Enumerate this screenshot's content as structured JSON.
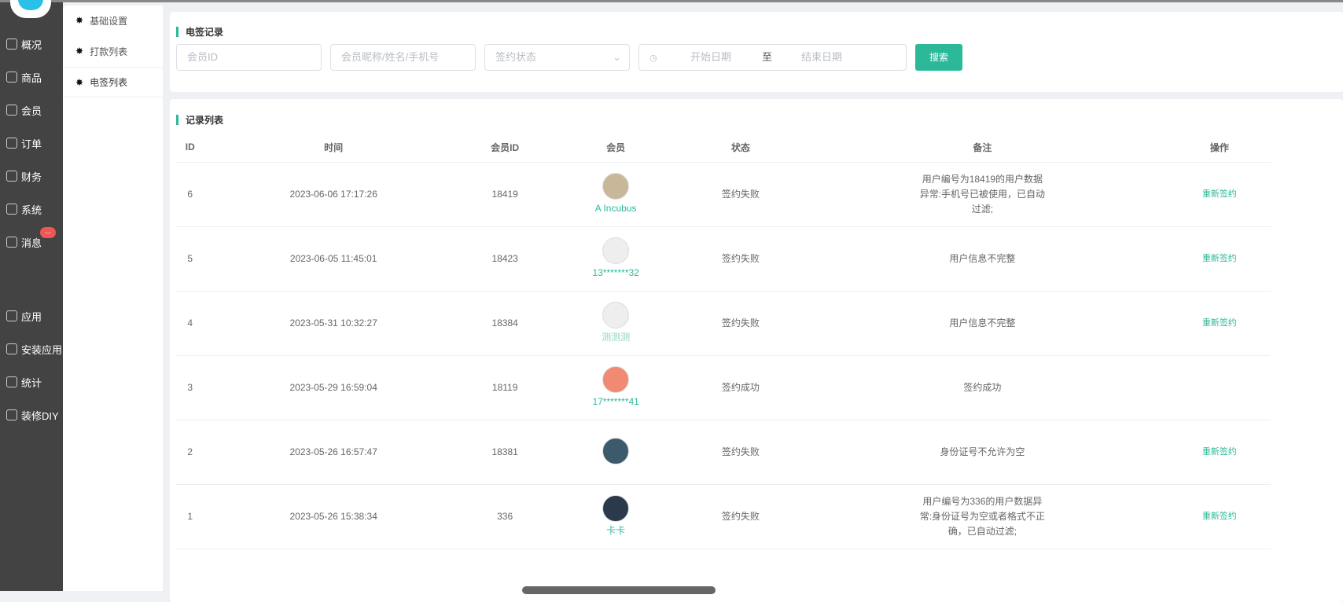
{
  "sidebar": {
    "items": [
      {
        "label": "概况",
        "icon": "chart-icon"
      },
      {
        "label": "商品",
        "icon": "box-icon"
      },
      {
        "label": "会员",
        "icon": "users-icon"
      },
      {
        "label": "订单",
        "icon": "cart-icon"
      },
      {
        "label": "财务",
        "icon": "finance-icon"
      },
      {
        "label": "系统",
        "icon": "gear-icon"
      },
      {
        "label": "消息",
        "icon": "message-icon"
      },
      {
        "label": "应用",
        "icon": "apps-icon"
      },
      {
        "label": "安装应用",
        "icon": "install-icon"
      },
      {
        "label": "统计",
        "icon": "stats-icon"
      },
      {
        "label": "装修DIY",
        "icon": "brush-icon"
      }
    ],
    "badge": "..."
  },
  "subnav": {
    "items": [
      {
        "label": "基础设置"
      },
      {
        "label": "打款列表"
      },
      {
        "label": "电签列表"
      }
    ]
  },
  "filter": {
    "title": "电签记录",
    "member_id_placeholder": "会员ID",
    "member_name_placeholder": "会员昵称/姓名/手机号",
    "status_placeholder": "签约状态",
    "start_placeholder": "开始日期",
    "range_sep": "至",
    "end_placeholder": "结束日期",
    "search_label": "搜索"
  },
  "list": {
    "title": "记录列表",
    "columns": [
      "ID",
      "时间",
      "会员ID",
      "会员",
      "状态",
      "备注",
      "操作"
    ],
    "rows": [
      {
        "id": "6",
        "time": "2023-06-06 17:17:26",
        "member_id": "18419",
        "member": "A Incubus",
        "status": "签约失败",
        "note": "用户编号为18419的用户数据异常:手机号已被使用，已自动过滤;",
        "action": "重新签约",
        "avatar": "#c9b79a"
      },
      {
        "id": "5",
        "time": "2023-06-05 11:45:01",
        "member_id": "18423",
        "member": "13*******32",
        "status": "签约失败",
        "note": "用户信息不完整",
        "action": "重新签约",
        "avatar": "#eeeeee"
      },
      {
        "id": "4",
        "time": "2023-05-31 10:32:27",
        "member_id": "18384",
        "member": "测测测",
        "status": "签约失败",
        "note": "用户信息不完整",
        "action": "重新签约",
        "avatar": "#eeeeee"
      },
      {
        "id": "3",
        "time": "2023-05-29 16:59:04",
        "member_id": "18119",
        "member": "17*******41",
        "status": "签约成功",
        "note": "签约成功",
        "action": "",
        "avatar": "#f08a72"
      },
      {
        "id": "2",
        "time": "2023-05-26 16:57:47",
        "member_id": "18381",
        "member": "",
        "status": "签约失败",
        "note": "身份证号不允许为空",
        "action": "重新签约",
        "avatar": "#3d5a6c"
      },
      {
        "id": "1",
        "time": "2023-05-26 15:38:34",
        "member_id": "336",
        "member": "卡卡",
        "status": "签约失败",
        "note": "用户编号为336的用户数据异常:身份证号为空或者格式不正确，已自动过滤;",
        "action": "重新签约",
        "avatar": "#2a3a4a"
      }
    ]
  }
}
